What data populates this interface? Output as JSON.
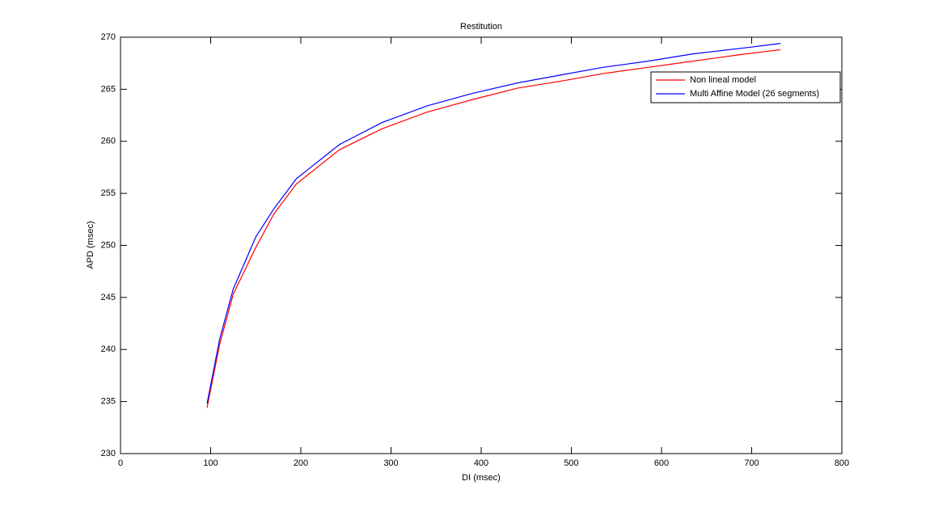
{
  "chart_data": {
    "type": "line",
    "title": "Restitution",
    "x_label": "DI (msec)",
    "y_label": "APD (msec)",
    "x": [
      96,
      110,
      125,
      150,
      170,
      195,
      243,
      290,
      340,
      390,
      440,
      490,
      535,
      585,
      635,
      685,
      732
    ],
    "series": [
      {
        "name": "Non lineal model",
        "color": "#ff0000",
        "values": [
          234.4,
          240.5,
          245.3,
          249.8,
          253.0,
          255.9,
          259.2,
          261.2,
          262.8,
          264.0,
          265.1,
          265.8,
          266.5,
          267.1,
          267.7,
          268.3,
          268.8
        ]
      },
      {
        "name": "Multi Affine Model (26 segments)",
        "color": "#0000ff",
        "values": [
          234.8,
          241.0,
          245.8,
          250.8,
          253.5,
          256.4,
          259.7,
          261.8,
          263.4,
          264.6,
          265.6,
          266.4,
          267.1,
          267.7,
          268.4,
          268.9,
          269.4
        ]
      }
    ],
    "xlim": [
      0,
      800
    ],
    "xticks": [
      0,
      100,
      200,
      300,
      400,
      500,
      600,
      700,
      800
    ],
    "ylim": [
      230,
      270
    ],
    "yticks": [
      230,
      235,
      240,
      245,
      250,
      255,
      260,
      265,
      270
    ],
    "legend": "upper-right"
  }
}
